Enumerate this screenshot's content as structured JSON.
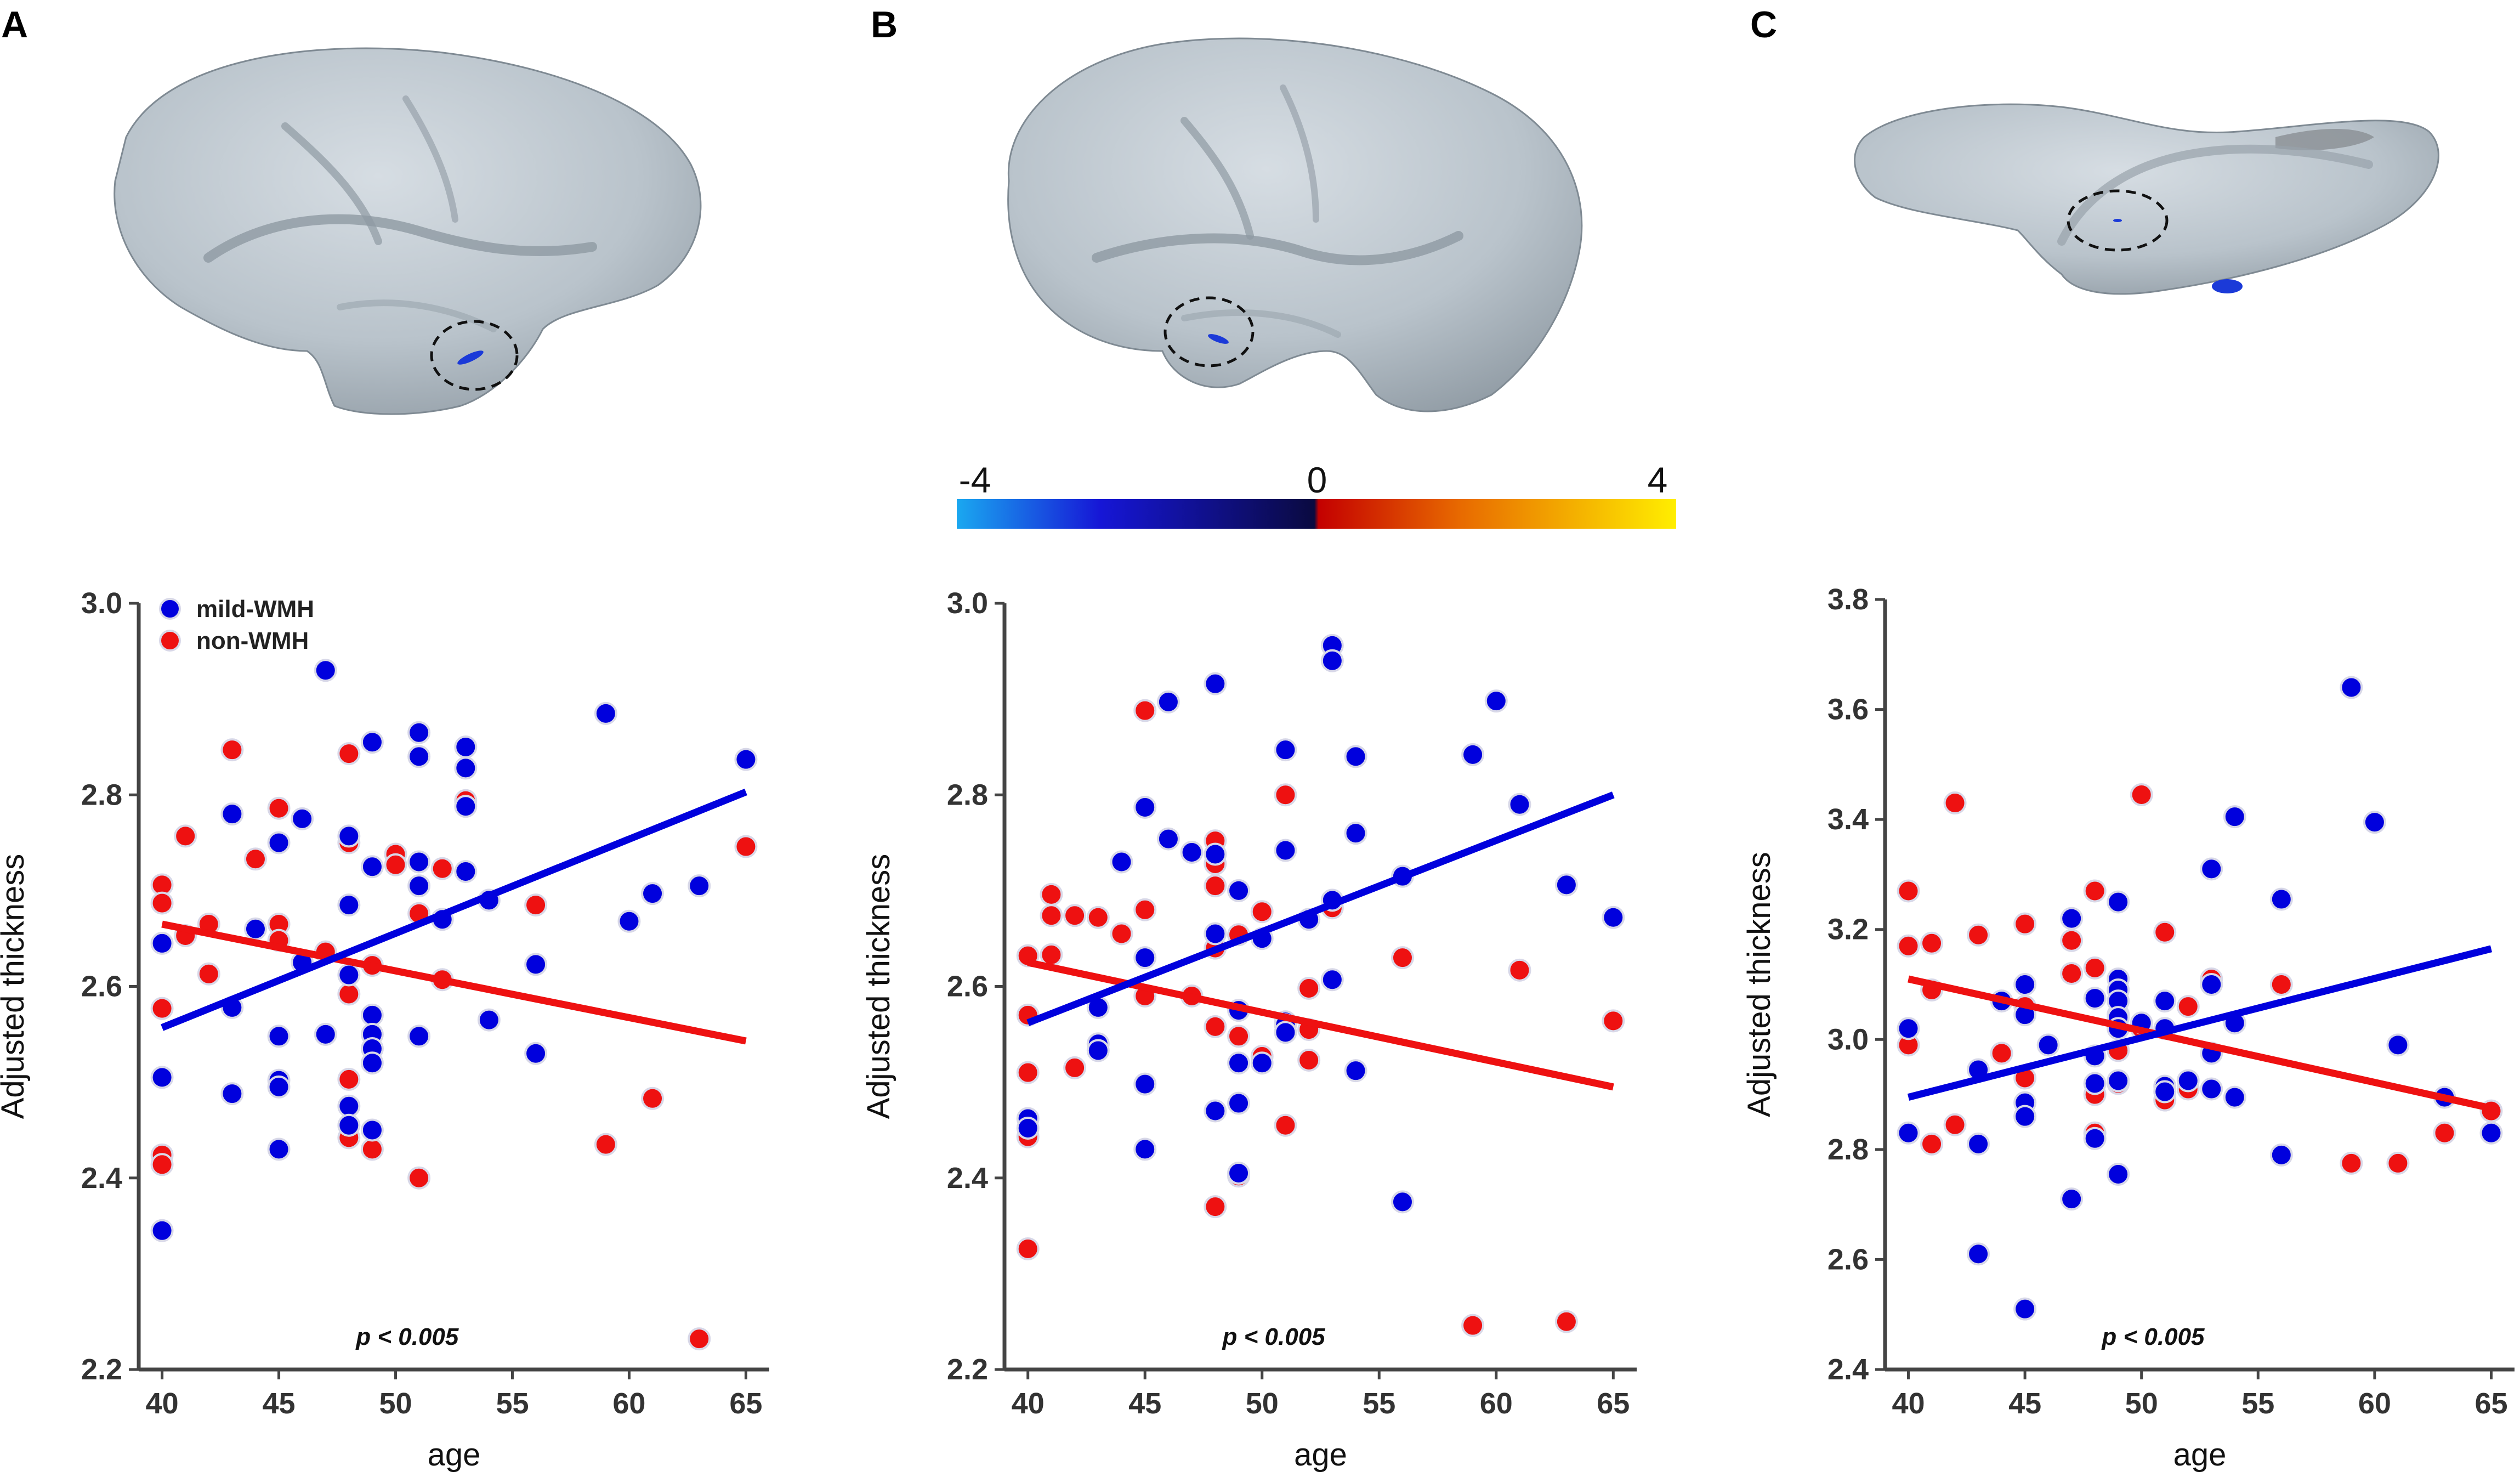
{
  "panels": [
    {
      "label": "A"
    },
    {
      "label": "B"
    },
    {
      "label": "C"
    }
  ],
  "colorbar": {
    "min_label": "-4",
    "mid_label": "0",
    "max_label": "4",
    "stops": [
      "#1aa8f0",
      "#1616d6",
      "#0a0a40",
      "#c40000",
      "#e86a00",
      "#ffee00"
    ]
  },
  "legend": {
    "mild": "mild-WMH",
    "non": "non-WMH"
  },
  "colors": {
    "mild": "#0000dd",
    "non": "#ee1111",
    "axis": "#444444"
  },
  "chart_data": [
    {
      "type": "scatter",
      "title": "A",
      "xlabel": "age",
      "ylabel": "Adjusted thickness",
      "xlim": [
        39,
        66
      ],
      "ylim": [
        2.2,
        3.0
      ],
      "xticks": [
        40,
        45,
        50,
        55,
        60,
        65
      ],
      "yticks": [
        "2.2",
        "2.4",
        "2.6",
        "2.8",
        "3.0"
      ],
      "annotation": "p < 0.005",
      "show_legend": true,
      "series": [
        {
          "name": "mild-WMH",
          "color": "#0000dd",
          "points": [
            [
              40,
              2.645
            ],
            [
              40,
              2.505
            ],
            [
              40,
              2.345
            ],
            [
              43,
              2.78
            ],
            [
              43,
              2.578
            ],
            [
              43,
              2.488
            ],
            [
              44,
              2.66
            ],
            [
              45,
              2.75
            ],
            [
              45,
              2.548
            ],
            [
              45,
              2.502
            ],
            [
              45,
              2.495
            ],
            [
              45,
              2.43
            ],
            [
              46,
              2.775
            ],
            [
              46,
              2.625
            ],
            [
              47,
              2.93
            ],
            [
              47,
              2.55
            ],
            [
              48,
              2.757
            ],
            [
              48,
              2.685
            ],
            [
              48,
              2.612
            ],
            [
              48,
              2.475
            ],
            [
              48,
              2.455
            ],
            [
              49,
              2.855
            ],
            [
              49,
              2.725
            ],
            [
              49,
              2.57
            ],
            [
              49,
              2.55
            ],
            [
              49,
              2.535
            ],
            [
              49,
              2.52
            ],
            [
              49,
              2.45
            ],
            [
              51,
              2.865
            ],
            [
              51,
              2.84
            ],
            [
              51,
              2.73
            ],
            [
              51,
              2.705
            ],
            [
              51,
              2.548
            ],
            [
              52,
              2.67
            ],
            [
              53,
              2.85
            ],
            [
              53,
              2.828
            ],
            [
              53,
              2.788
            ],
            [
              53,
              2.72
            ],
            [
              54,
              2.69
            ],
            [
              54,
              2.565
            ],
            [
              56,
              2.623
            ],
            [
              56,
              2.53
            ],
            [
              59,
              2.885
            ],
            [
              60,
              2.668
            ],
            [
              61,
              2.697
            ],
            [
              63,
              2.705
            ],
            [
              65,
              2.837
            ]
          ],
          "fit": [
            [
              40,
              2.557
            ],
            [
              65,
              2.803
            ]
          ]
        },
        {
          "name": "non-WMH",
          "color": "#ee1111",
          "points": [
            [
              40,
              2.706
            ],
            [
              40,
              2.687
            ],
            [
              40,
              2.577
            ],
            [
              40,
              2.424
            ],
            [
              40,
              2.414
            ],
            [
              41,
              2.757
            ],
            [
              41,
              2.653
            ],
            [
              42,
              2.665
            ],
            [
              42,
              2.613
            ],
            [
              43,
              2.847
            ],
            [
              44,
              2.733
            ],
            [
              45,
              2.786
            ],
            [
              45,
              2.665
            ],
            [
              45,
              2.648
            ],
            [
              47,
              2.636
            ],
            [
              48,
              2.843
            ],
            [
              48,
              2.75
            ],
            [
              48,
              2.592
            ],
            [
              48,
              2.503
            ],
            [
              48,
              2.442
            ],
            [
              49,
              2.622
            ],
            [
              49,
              2.43
            ],
            [
              50,
              2.738
            ],
            [
              50,
              2.727
            ],
            [
              51,
              2.676
            ],
            [
              51,
              2.4
            ],
            [
              52,
              2.723
            ],
            [
              52,
              2.607
            ],
            [
              53,
              2.794
            ],
            [
              56,
              2.685
            ],
            [
              59,
              2.435
            ],
            [
              61,
              2.483
            ],
            [
              63,
              2.232
            ],
            [
              65,
              2.746
            ]
          ],
          "fit": [
            [
              40,
              2.665
            ],
            [
              65,
              2.543
            ]
          ]
        }
      ]
    },
    {
      "type": "scatter",
      "title": "B",
      "xlabel": "age",
      "ylabel": "Adjusted thickness",
      "xlim": [
        39,
        66
      ],
      "ylim": [
        2.2,
        3.0
      ],
      "xticks": [
        40,
        45,
        50,
        55,
        60,
        65
      ],
      "yticks": [
        "2.2",
        "2.4",
        "2.6",
        "2.8",
        "3.0"
      ],
      "annotation": "p < 0.005",
      "show_legend": false,
      "series": [
        {
          "name": "mild-WMH",
          "color": "#0000dd",
          "points": [
            [
              40,
              2.462
            ],
            [
              40,
              2.452
            ],
            [
              43,
              2.578
            ],
            [
              43,
              2.54
            ],
            [
              43,
              2.533
            ],
            [
              44,
              2.73
            ],
            [
              45,
              2.787
            ],
            [
              45,
              2.63
            ],
            [
              45,
              2.498
            ],
            [
              45,
              2.43
            ],
            [
              46,
              2.897
            ],
            [
              46,
              2.754
            ],
            [
              47,
              2.74
            ],
            [
              48,
              2.916
            ],
            [
              48,
              2.738
            ],
            [
              48,
              2.655
            ],
            [
              48,
              2.47
            ],
            [
              49,
              2.7
            ],
            [
              49,
              2.575
            ],
            [
              49,
              2.52
            ],
            [
              49,
              2.478
            ],
            [
              49,
              2.405
            ],
            [
              50,
              2.52
            ],
            [
              50,
              2.65
            ],
            [
              51,
              2.847
            ],
            [
              51,
              2.742
            ],
            [
              51,
              2.563
            ],
            [
              51,
              2.56
            ],
            [
              51,
              2.552
            ],
            [
              52,
              2.67
            ],
            [
              53,
              2.956
            ],
            [
              53,
              2.94
            ],
            [
              53,
              2.69
            ],
            [
              53,
              2.607
            ],
            [
              54,
              2.84
            ],
            [
              54,
              2.76
            ],
            [
              54,
              2.512
            ],
            [
              56,
              2.715
            ],
            [
              56,
              2.375
            ],
            [
              59,
              2.842
            ],
            [
              60,
              2.898
            ],
            [
              61,
              2.79
            ],
            [
              63,
              2.706
            ],
            [
              65,
              2.672
            ]
          ],
          "fit": [
            [
              40,
              2.562
            ],
            [
              65,
              2.8
            ]
          ]
        },
        {
          "name": "non-WMH",
          "color": "#ee1111",
          "points": [
            [
              40,
              2.632
            ],
            [
              40,
              2.57
            ],
            [
              40,
              2.51
            ],
            [
              40,
              2.443
            ],
            [
              40,
              2.326
            ],
            [
              41,
              2.696
            ],
            [
              41,
              2.674
            ],
            [
              41,
              2.633
            ],
            [
              42,
              2.674
            ],
            [
              42,
              2.515
            ],
            [
              43,
              2.672
            ],
            [
              44,
              2.655
            ],
            [
              45,
              2.888
            ],
            [
              45,
              2.68
            ],
            [
              45,
              2.59
            ],
            [
              47,
              2.59
            ],
            [
              48,
              2.752
            ],
            [
              48,
              2.728
            ],
            [
              48,
              2.705
            ],
            [
              48,
              2.64
            ],
            [
              48,
              2.558
            ],
            [
              48,
              2.37
            ],
            [
              49,
              2.654
            ],
            [
              49,
              2.548
            ],
            [
              49,
              2.402
            ],
            [
              50,
              2.678
            ],
            [
              50,
              2.527
            ],
            [
              51,
              2.8
            ],
            [
              51,
              2.455
            ],
            [
              52,
              2.598
            ],
            [
              52,
              2.555
            ],
            [
              52,
              2.523
            ],
            [
              53,
              2.682
            ],
            [
              56,
              2.63
            ],
            [
              59,
              2.246
            ],
            [
              61,
              2.617
            ],
            [
              63,
              2.25
            ],
            [
              65,
              2.564
            ]
          ],
          "fit": [
            [
              40,
              2.625
            ],
            [
              65,
              2.495
            ]
          ]
        }
      ]
    },
    {
      "type": "scatter",
      "title": "C",
      "xlabel": "age",
      "ylabel": "Adjusted thickness",
      "xlim": [
        39,
        66
      ],
      "ylim": [
        2.4,
        3.8
      ],
      "xticks": [
        40,
        45,
        50,
        55,
        60,
        65
      ],
      "yticks": [
        "2.4",
        "2.6",
        "2.8",
        "3.0",
        "3.2",
        "3.4",
        "3.6",
        "3.8"
      ],
      "annotation": "p < 0.005",
      "show_legend": false,
      "series": [
        {
          "name": "mild-WMH",
          "color": "#0000dd",
          "points": [
            [
              40,
              3.02
            ],
            [
              40,
              2.83
            ],
            [
              43,
              2.945
            ],
            [
              43,
              2.81
            ],
            [
              43,
              2.61
            ],
            [
              44,
              3.07
            ],
            [
              45,
              3.1
            ],
            [
              45,
              3.045
            ],
            [
              45,
              2.885
            ],
            [
              45,
              2.86
            ],
            [
              45,
              2.51
            ],
            [
              46,
              2.99
            ],
            [
              47,
              3.22
            ],
            [
              47,
              2.71
            ],
            [
              48,
              3.075
            ],
            [
              48,
              2.97
            ],
            [
              48,
              2.92
            ],
            [
              48,
              2.82
            ],
            [
              49,
              3.25
            ],
            [
              49,
              3.11
            ],
            [
              49,
              3.09
            ],
            [
              49,
              3.07
            ],
            [
              49,
              3.04
            ],
            [
              49,
              3.02
            ],
            [
              49,
              2.925
            ],
            [
              49,
              2.755
            ],
            [
              50,
              3.03
            ],
            [
              51,
              3.07
            ],
            [
              51,
              3.02
            ],
            [
              51,
              2.915
            ],
            [
              51,
              2.905
            ],
            [
              52,
              2.925
            ],
            [
              53,
              3.31
            ],
            [
              53,
              3.1
            ],
            [
              53,
              2.975
            ],
            [
              53,
              2.91
            ],
            [
              54,
              3.405
            ],
            [
              54,
              3.03
            ],
            [
              54,
              2.895
            ],
            [
              56,
              3.255
            ],
            [
              56,
              2.79
            ],
            [
              59,
              3.64
            ],
            [
              60,
              3.395
            ],
            [
              61,
              2.99
            ],
            [
              63,
              2.895
            ],
            [
              65,
              2.83
            ]
          ],
          "fit": [
            [
              40,
              2.895
            ],
            [
              65,
              3.165
            ]
          ]
        },
        {
          "name": "non-WMH",
          "color": "#ee1111",
          "points": [
            [
              40,
              3.27
            ],
            [
              40,
              3.17
            ],
            [
              40,
              2.99
            ],
            [
              41,
              3.175
            ],
            [
              41,
              3.09
            ],
            [
              41,
              2.81
            ],
            [
              42,
              3.43
            ],
            [
              42,
              2.845
            ],
            [
              43,
              3.19
            ],
            [
              44,
              2.975
            ],
            [
              45,
              3.21
            ],
            [
              45,
              3.06
            ],
            [
              45,
              2.93
            ],
            [
              47,
              3.18
            ],
            [
              47,
              3.12
            ],
            [
              48,
              3.27
            ],
            [
              48,
              3.13
            ],
            [
              48,
              2.9
            ],
            [
              48,
              2.83
            ],
            [
              49,
              3.045
            ],
            [
              49,
              3.02
            ],
            [
              49,
              2.98
            ],
            [
              49,
              2.92
            ],
            [
              50,
              3.445
            ],
            [
              50,
              3.02
            ],
            [
              51,
              3.195
            ],
            [
              51,
              2.89
            ],
            [
              52,
              3.06
            ],
            [
              52,
              2.91
            ],
            [
              53,
              3.11
            ],
            [
              56,
              3.1
            ],
            [
              59,
              2.775
            ],
            [
              61,
              2.775
            ],
            [
              63,
              2.83
            ],
            [
              65,
              2.87
            ]
          ],
          "fit": [
            [
              40,
              3.11
            ],
            [
              65,
              2.875
            ]
          ]
        }
      ]
    }
  ]
}
